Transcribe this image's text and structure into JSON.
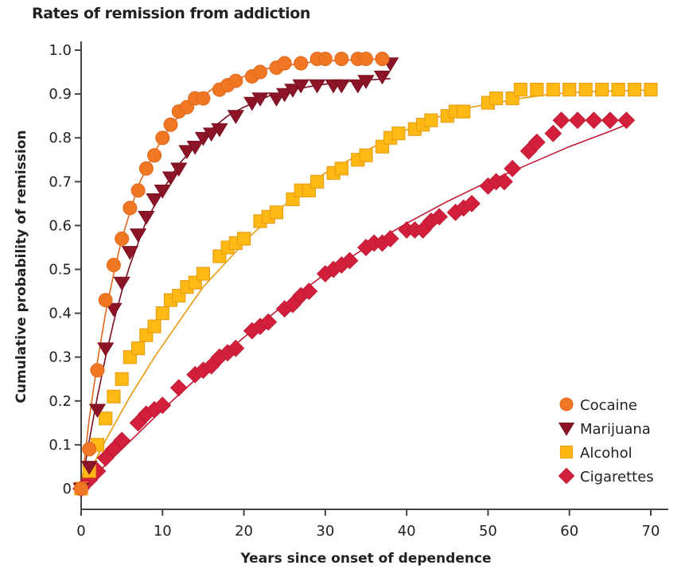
{
  "chart_data": {
    "type": "scatter",
    "title": "Rates of remission from addiction",
    "xlabel": "Years since onset of dependence",
    "ylabel": "Cumulative probability of remission",
    "xlim": [
      0,
      70
    ],
    "ylim": [
      0,
      1.0
    ],
    "xticks": [
      0,
      10,
      20,
      30,
      40,
      50,
      60,
      70
    ],
    "xtick_labels": [
      "0",
      "10",
      "20",
      "30",
      "40",
      "50",
      "60",
      "70"
    ],
    "yticks": [
      0,
      0.1,
      0.2,
      0.3,
      0.4,
      0.5,
      0.6,
      0.7,
      0.8,
      0.9,
      1.0
    ],
    "ytick_labels": [
      "0",
      "0.1",
      "0.2",
      "0.3",
      "0.4",
      "0.5",
      "0.6",
      "0.7",
      "0.8",
      "0.9",
      "1.0"
    ],
    "grid": false,
    "legend_position": "bottom-right",
    "series": [
      {
        "name": "Cocaine",
        "marker": "circle",
        "color": "#f07824",
        "edge_color": "#e0661a",
        "points": [
          [
            0,
            0
          ],
          [
            1,
            0.09
          ],
          [
            2,
            0.27
          ],
          [
            3,
            0.43
          ],
          [
            4,
            0.51
          ],
          [
            5,
            0.57
          ],
          [
            6,
            0.64
          ],
          [
            7,
            0.68
          ],
          [
            8,
            0.73
          ],
          [
            9,
            0.76
          ],
          [
            10,
            0.8
          ],
          [
            11,
            0.83
          ],
          [
            12,
            0.86
          ],
          [
            13,
            0.87
          ],
          [
            14,
            0.89
          ],
          [
            15,
            0.89
          ],
          [
            17,
            0.91
          ],
          [
            18,
            0.92
          ],
          [
            19,
            0.93
          ],
          [
            21,
            0.94
          ],
          [
            22,
            0.95
          ],
          [
            24,
            0.96
          ],
          [
            25,
            0.97
          ],
          [
            27,
            0.97
          ],
          [
            29,
            0.98
          ],
          [
            30,
            0.98
          ],
          [
            32,
            0.98
          ],
          [
            34,
            0.98
          ],
          [
            35,
            0.98
          ],
          [
            37,
            0.98
          ]
        ],
        "fit": [
          [
            0,
            0
          ],
          [
            1,
            0.16
          ],
          [
            2,
            0.29
          ],
          [
            3,
            0.4
          ],
          [
            4,
            0.49
          ],
          [
            5,
            0.57
          ],
          [
            6,
            0.63
          ],
          [
            7,
            0.69
          ],
          [
            8,
            0.73
          ],
          [
            10,
            0.8
          ],
          [
            12,
            0.85
          ],
          [
            14,
            0.88
          ],
          [
            16,
            0.91
          ],
          [
            18,
            0.93
          ],
          [
            20,
            0.94
          ],
          [
            22,
            0.955
          ],
          [
            25,
            0.965
          ],
          [
            28,
            0.972
          ],
          [
            31,
            0.976
          ],
          [
            34,
            0.978
          ],
          [
            37,
            0.98
          ]
        ]
      },
      {
        "name": "Marijuana",
        "marker": "triangle-down",
        "color": "#8b1527",
        "edge_color": "#7a1020",
        "points": [
          [
            0,
            0
          ],
          [
            1,
            0.05
          ],
          [
            2,
            0.18
          ],
          [
            3,
            0.32
          ],
          [
            4,
            0.41
          ],
          [
            5,
            0.47
          ],
          [
            6,
            0.54
          ],
          [
            7,
            0.58
          ],
          [
            8,
            0.62
          ],
          [
            9,
            0.66
          ],
          [
            10,
            0.68
          ],
          [
            11,
            0.71
          ],
          [
            12,
            0.73
          ],
          [
            13,
            0.77
          ],
          [
            14,
            0.78
          ],
          [
            15,
            0.8
          ],
          [
            16,
            0.81
          ],
          [
            17,
            0.82
          ],
          [
            19,
            0.85
          ],
          [
            21,
            0.88
          ],
          [
            22,
            0.89
          ],
          [
            24,
            0.89
          ],
          [
            25,
            0.9
          ],
          [
            26,
            0.91
          ],
          [
            27,
            0.92
          ],
          [
            29,
            0.92
          ],
          [
            31,
            0.92
          ],
          [
            32,
            0.92
          ],
          [
            34,
            0.92
          ],
          [
            35,
            0.93
          ],
          [
            37,
            0.94
          ],
          [
            38,
            0.97
          ]
        ],
        "fit": [
          [
            0,
            0
          ],
          [
            1,
            0.11
          ],
          [
            2,
            0.21
          ],
          [
            3,
            0.3
          ],
          [
            4,
            0.38
          ],
          [
            5,
            0.45
          ],
          [
            6,
            0.51
          ],
          [
            7,
            0.56
          ],
          [
            8,
            0.61
          ],
          [
            10,
            0.68
          ],
          [
            12,
            0.74
          ],
          [
            14,
            0.78
          ],
          [
            16,
            0.82
          ],
          [
            18,
            0.85
          ],
          [
            20,
            0.87
          ],
          [
            23,
            0.895
          ],
          [
            26,
            0.91
          ],
          [
            29,
            0.92
          ],
          [
            32,
            0.927
          ],
          [
            35,
            0.932
          ],
          [
            38,
            0.935
          ]
        ]
      },
      {
        "name": "Alcohol",
        "marker": "square",
        "color": "#ffb915",
        "edge_color": "#e89a10",
        "points": [
          [
            0,
            0
          ],
          [
            1,
            0.04
          ],
          [
            2,
            0.1
          ],
          [
            3,
            0.16
          ],
          [
            4,
            0.21
          ],
          [
            5,
            0.25
          ],
          [
            6,
            0.3
          ],
          [
            7,
            0.32
          ],
          [
            8,
            0.35
          ],
          [
            9,
            0.37
          ],
          [
            10,
            0.4
          ],
          [
            11,
            0.43
          ],
          [
            12,
            0.44
          ],
          [
            13,
            0.46
          ],
          [
            14,
            0.47
          ],
          [
            15,
            0.49
          ],
          [
            17,
            0.53
          ],
          [
            18,
            0.55
          ],
          [
            19,
            0.56
          ],
          [
            20,
            0.57
          ],
          [
            22,
            0.61
          ],
          [
            23,
            0.62
          ],
          [
            24,
            0.63
          ],
          [
            26,
            0.66
          ],
          [
            27,
            0.68
          ],
          [
            28,
            0.68
          ],
          [
            29,
            0.7
          ],
          [
            31,
            0.72
          ],
          [
            32,
            0.73
          ],
          [
            34,
            0.75
          ],
          [
            35,
            0.76
          ],
          [
            37,
            0.78
          ],
          [
            38,
            0.8
          ],
          [
            39,
            0.81
          ],
          [
            41,
            0.82
          ],
          [
            42,
            0.83
          ],
          [
            43,
            0.84
          ],
          [
            45,
            0.85
          ],
          [
            46,
            0.86
          ],
          [
            47,
            0.86
          ],
          [
            50,
            0.88
          ],
          [
            51,
            0.89
          ],
          [
            53,
            0.89
          ],
          [
            54,
            0.91
          ],
          [
            56,
            0.91
          ],
          [
            58,
            0.91
          ],
          [
            60,
            0.91
          ],
          [
            62,
            0.91
          ],
          [
            64,
            0.91
          ],
          [
            66,
            0.91
          ],
          [
            68,
            0.91
          ],
          [
            70,
            0.91
          ]
        ],
        "fit": [
          [
            0,
            0
          ],
          [
            3,
            0.11
          ],
          [
            6,
            0.21
          ],
          [
            9,
            0.3
          ],
          [
            12,
            0.38
          ],
          [
            15,
            0.46
          ],
          [
            18,
            0.52
          ],
          [
            21,
            0.58
          ],
          [
            24,
            0.63
          ],
          [
            27,
            0.68
          ],
          [
            30,
            0.72
          ],
          [
            33,
            0.75
          ],
          [
            36,
            0.78
          ],
          [
            39,
            0.81
          ],
          [
            42,
            0.835
          ],
          [
            45,
            0.855
          ],
          [
            48,
            0.87
          ],
          [
            51,
            0.88
          ],
          [
            54,
            0.89
          ],
          [
            58,
            0.9
          ],
          [
            62,
            0.905
          ],
          [
            66,
            0.907
          ],
          [
            70,
            0.909
          ]
        ]
      },
      {
        "name": "Cigarettes",
        "marker": "diamond",
        "color": "#d21f3c",
        "edge_color": "#c21a35",
        "points": [
          [
            0,
            0
          ],
          [
            1,
            0.02
          ],
          [
            2,
            0.04
          ],
          [
            3,
            0.07
          ],
          [
            4,
            0.09
          ],
          [
            5,
            0.11
          ],
          [
            7,
            0.15
          ],
          [
            8,
            0.17
          ],
          [
            9,
            0.18
          ],
          [
            10,
            0.19
          ],
          [
            12,
            0.23
          ],
          [
            14,
            0.26
          ],
          [
            15,
            0.27
          ],
          [
            16,
            0.28
          ],
          [
            17,
            0.3
          ],
          [
            18,
            0.31
          ],
          [
            19,
            0.32
          ],
          [
            21,
            0.36
          ],
          [
            22,
            0.37
          ],
          [
            23,
            0.38
          ],
          [
            25,
            0.41
          ],
          [
            26,
            0.42
          ],
          [
            27,
            0.44
          ],
          [
            28,
            0.45
          ],
          [
            30,
            0.49
          ],
          [
            31,
            0.5
          ],
          [
            32,
            0.51
          ],
          [
            33,
            0.52
          ],
          [
            35,
            0.55
          ],
          [
            36,
            0.56
          ],
          [
            37,
            0.56
          ],
          [
            38,
            0.57
          ],
          [
            40,
            0.59
          ],
          [
            41,
            0.59
          ],
          [
            42,
            0.59
          ],
          [
            43,
            0.61
          ],
          [
            44,
            0.62
          ],
          [
            46,
            0.63
          ],
          [
            47,
            0.64
          ],
          [
            48,
            0.65
          ],
          [
            50,
            0.69
          ],
          [
            51,
            0.7
          ],
          [
            52,
            0.7
          ],
          [
            53,
            0.73
          ],
          [
            55,
            0.77
          ],
          [
            56,
            0.79
          ],
          [
            58,
            0.81
          ],
          [
            59,
            0.84
          ],
          [
            61,
            0.84
          ],
          [
            63,
            0.84
          ],
          [
            65,
            0.84
          ],
          [
            67,
            0.84
          ]
        ],
        "fit": [
          [
            0,
            0
          ],
          [
            5,
            0.09
          ],
          [
            10,
            0.18
          ],
          [
            15,
            0.265
          ],
          [
            20,
            0.345
          ],
          [
            25,
            0.42
          ],
          [
            30,
            0.49
          ],
          [
            35,
            0.55
          ],
          [
            40,
            0.605
          ],
          [
            45,
            0.655
          ],
          [
            50,
            0.7
          ],
          [
            55,
            0.74
          ],
          [
            60,
            0.78
          ],
          [
            65,
            0.815
          ],
          [
            67,
            0.83
          ]
        ]
      }
    ]
  }
}
